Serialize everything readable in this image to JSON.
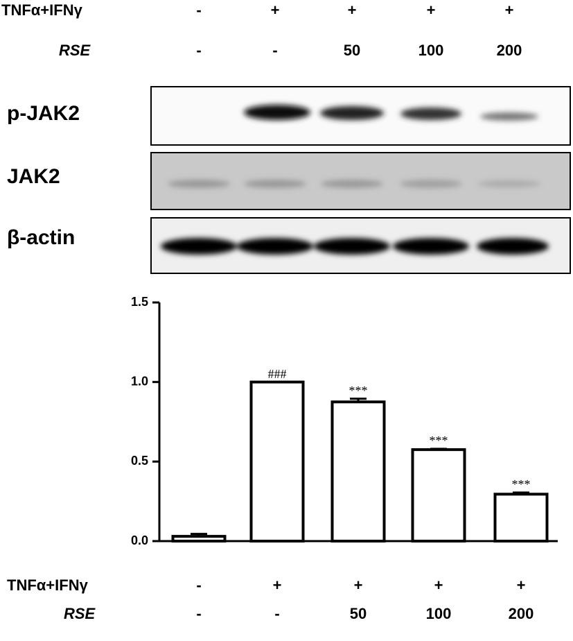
{
  "blot": {
    "treatment_rows": [
      {
        "label": "TNFα+IFNγ",
        "values": [
          "-",
          "+",
          "+",
          "+",
          "+"
        ]
      },
      {
        "label": "RSE",
        "values": [
          "-",
          "-",
          "50",
          "100",
          "200"
        ]
      }
    ],
    "bands": [
      "p-JAK2",
      "JAK2",
      "β-actin"
    ]
  },
  "chart_data": {
    "type": "bar",
    "categories": [
      null,
      null,
      null,
      null,
      null
    ],
    "values": [
      0.03,
      1.0,
      0.875,
      0.575,
      0.295
    ],
    "errors": [
      0.015,
      0,
      0.02,
      0.005,
      0.01
    ],
    "bar_labels": [
      null,
      "###",
      "***",
      "***",
      "***"
    ],
    "color": "#ffffff",
    "ylim": [
      0,
      1.5
    ],
    "yticks": [
      {
        "value": 0,
        "label": "0.0"
      },
      {
        "value": 0.5,
        "label": "0.5"
      },
      {
        "value": 1,
        "label": "1.0"
      },
      {
        "value": 1.5,
        "label": "1.5"
      }
    ],
    "x_rows": [
      {
        "label": "TNFα+IFNγ",
        "values": [
          "-",
          "+",
          "+",
          "+",
          "+"
        ]
      },
      {
        "label": "RSE",
        "values": [
          "-",
          "-",
          "50",
          "100",
          "200"
        ]
      }
    ]
  }
}
